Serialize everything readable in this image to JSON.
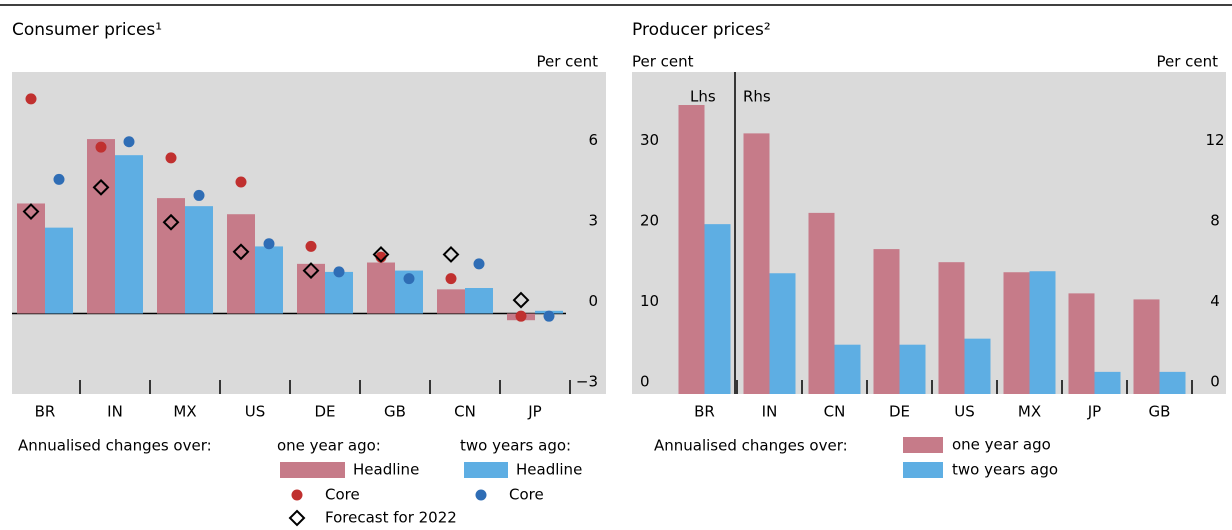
{
  "chart_data": [
    {
      "type": "bar",
      "title": "Consumer prices¹",
      "ylabel": "Per cent",
      "categories": [
        "BR",
        "IN",
        "MX",
        "US",
        "DE",
        "GB",
        "CN",
        "JP"
      ],
      "ylim": [
        -3,
        9
      ],
      "yticks": [
        {
          "value": -3,
          "label": "−3"
        },
        0,
        3,
        6
      ],
      "legend_title": "Annualised changes over:",
      "legend_groups": [
        "one year ago:",
        "two years ago:"
      ],
      "series": [
        {
          "name": "Headline",
          "color": "#c67b89",
          "slot": 0,
          "values": [
            4.1,
            6.5,
            4.3,
            3.7,
            1.85,
            1.9,
            0.9,
            -0.25
          ]
        },
        {
          "name": "Headline",
          "color": "#5eaee3",
          "slot": 1,
          "values": [
            3.2,
            5.9,
            4.0,
            2.5,
            1.55,
            1.6,
            0.95,
            0.1
          ]
        },
        {
          "name": "Core",
          "color": "#c0302f",
          "slot": 0,
          "marker": "circle",
          "values": [
            8.0,
            6.2,
            5.8,
            4.9,
            2.5,
            2.1,
            1.3,
            -0.1
          ]
        },
        {
          "name": "Core",
          "color": "#2f6db5",
          "slot": 1,
          "marker": "circle",
          "values": [
            5.0,
            6.4,
            4.4,
            2.6,
            1.55,
            1.3,
            1.85,
            -0.1
          ]
        },
        {
          "name": "Forecast for 2022",
          "color": "#000000",
          "slot": 0,
          "marker": "diamond",
          "values": [
            3.8,
            4.7,
            3.4,
            2.3,
            1.6,
            2.2,
            2.2,
            0.5
          ]
        }
      ]
    },
    {
      "type": "bar",
      "title": "Producer prices²",
      "ylabel": "Per cent",
      "y2label": "Per cent",
      "categories": [
        "BR",
        "IN",
        "CN",
        "DE",
        "US",
        "MX",
        "JP",
        "GB"
      ],
      "category_axes": [
        "y",
        "y2",
        "y2",
        "y2",
        "y2",
        "y2",
        "y2",
        "y2"
      ],
      "annotations": [
        "Lhs",
        "Rhs"
      ],
      "ylim": [
        0,
        40
      ],
      "yticks": [
        0,
        10,
        20,
        30
      ],
      "y2lim": [
        0,
        16
      ],
      "y2ticks": [
        0,
        4,
        8,
        12
      ],
      "legend_title": "Annualised changes over:",
      "series": [
        {
          "name": "one year ago",
          "color": "#c67b89",
          "slot": 0,
          "values": [
            35.9,
            12.95,
            9.0,
            7.2,
            6.55,
            6.05,
            5.0,
            4.7
          ]
        },
        {
          "name": "two years ago",
          "color": "#5eaee3",
          "slot": 1,
          "values": [
            21.1,
            6.0,
            2.45,
            2.45,
            2.75,
            6.1,
            1.1,
            1.1
          ]
        }
      ]
    }
  ]
}
